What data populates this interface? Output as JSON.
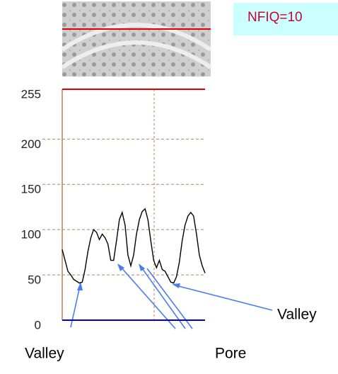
{
  "chart_data": {
    "type": "line",
    "values": [
      78,
      66,
      54,
      50,
      45,
      43,
      41,
      42,
      56,
      76,
      91,
      100,
      97,
      89,
      95,
      91,
      84,
      66,
      66,
      88,
      111,
      119,
      105,
      72,
      60,
      72,
      95,
      111,
      120,
      123,
      111,
      88,
      66,
      58,
      66,
      56,
      54,
      48,
      42,
      41,
      48,
      64,
      88,
      105,
      115,
      119,
      115,
      95,
      72,
      60,
      52
    ],
    "color": "#000000",
    "ylim": [
      0,
      255
    ],
    "yticks": [
      0,
      50,
      100,
      150,
      200,
      255
    ],
    "grid": true,
    "grid_color": "#b5835a",
    "max_line_color": "#e00000",
    "min_line_color": "#0000cc",
    "badge": "NFIQ=10",
    "annotations": [
      "Valley",
      "Pore",
      "Valley"
    ]
  }
}
